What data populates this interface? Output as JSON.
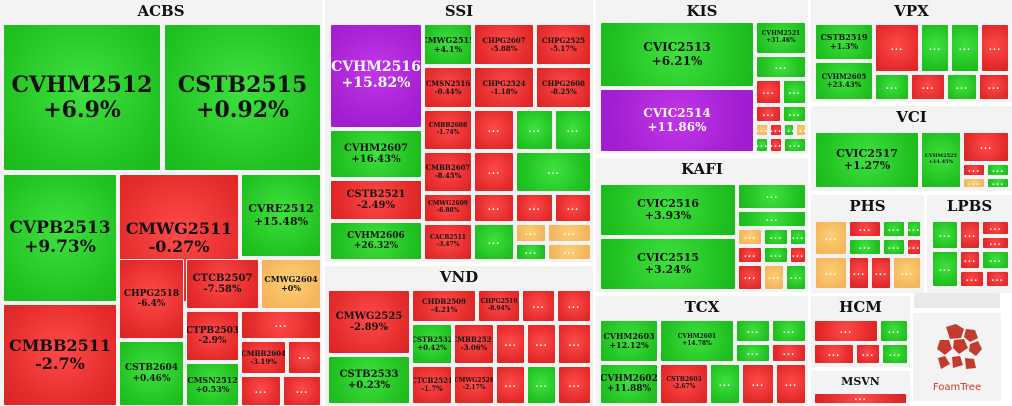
{
  "chart_data": {
    "type": "treemap",
    "groups": [
      {
        "name": "ACBS",
        "items": [
          {
            "label": "CVHM2512",
            "value": "+6.9%"
          },
          {
            "label": "CSTB2515",
            "value": "+0.92%"
          },
          {
            "label": "CVPB2513",
            "value": "+9.73%"
          },
          {
            "label": "CMWG2511",
            "value": "-0.27%"
          },
          {
            "label": "CVRE2512",
            "value": "+15.48%"
          },
          {
            "label": "CMBB2511",
            "value": "-2.7%"
          },
          {
            "label": "CHPG2518",
            "value": "-6.4%"
          },
          {
            "label": "CTCB2507",
            "value": "-7.58%"
          },
          {
            "label": "CMWG2604",
            "value": "+0%"
          },
          {
            "label": "CSTB2604",
            "value": "+0.46%"
          },
          {
            "label": "CTPB2503",
            "value": "-2.9%"
          },
          {
            "label": "CMBB2604",
            "value": "-3.19%"
          },
          {
            "label": "CMSN2512",
            "value": "+0.53%"
          }
        ]
      },
      {
        "name": "SSI",
        "items": [
          {
            "label": "CVHM2516",
            "value": "+15.82%"
          },
          {
            "label": "CMWG2515",
            "value": "+4.1%"
          },
          {
            "label": "CHPG2607",
            "value": "-5.88%"
          },
          {
            "label": "CHPG2525",
            "value": "-5.17%"
          },
          {
            "label": "CMSN2516",
            "value": "-0.44%"
          },
          {
            "label": "CHPG2524",
            "value": "-1.18%"
          },
          {
            "label": "CHPG2608",
            "value": "-8.25%"
          },
          {
            "label": "CMBB2608",
            "value": "-1.74%"
          },
          {
            "label": "CVHM2607",
            "value": "+16.43%"
          },
          {
            "label": "CMBB2607",
            "value": "-8.45%"
          },
          {
            "label": "CSTB2521",
            "value": "-2.49%"
          },
          {
            "label": "CMWG2609",
            "value": "-6.88%"
          },
          {
            "label": "CVHM2606",
            "value": "+26.32%"
          },
          {
            "label": "CACB2511",
            "value": "-3.47%"
          }
        ]
      },
      {
        "name": "VND",
        "items": [
          {
            "label": "CMWG2525",
            "value": "-2.89%"
          },
          {
            "label": "CHDB2509",
            "value": "-4.21%"
          },
          {
            "label": "CHPG2519",
            "value": "-8.94%"
          },
          {
            "label": "CSTB2532",
            "value": "+0.42%"
          },
          {
            "label": "CMBB2521",
            "value": "-3.06%"
          },
          {
            "label": "CSTB2533",
            "value": "+0.23%"
          },
          {
            "label": "CTCB2521",
            "value": "-1.7%"
          },
          {
            "label": "CMWG2526",
            "value": "-2.17%"
          }
        ]
      },
      {
        "name": "KIS",
        "items": [
          {
            "label": "CVIC2513",
            "value": "+6.21%"
          },
          {
            "label": "CVHM2521",
            "value": "+31.46%"
          },
          {
            "label": "CVIC2514",
            "value": "+11.86%"
          }
        ]
      },
      {
        "name": "KAFI",
        "items": [
          {
            "label": "CVIC2516",
            "value": "+3.93%"
          },
          {
            "label": "CVIC2515",
            "value": "+3.24%"
          }
        ]
      },
      {
        "name": "TCX",
        "items": [
          {
            "label": "CVHM2603",
            "value": "+12.12%"
          },
          {
            "label": "CVHM2601",
            "value": "+14.78%"
          },
          {
            "label": "CVHM2602",
            "value": "+11.88%"
          },
          {
            "label": "CSTB2603",
            "value": "-2.67%"
          }
        ]
      },
      {
        "name": "VPX",
        "items": [
          {
            "label": "CSTB2519",
            "value": "+1.3%"
          },
          {
            "label": "CVHM2605",
            "value": "+23.43%"
          }
        ]
      },
      {
        "name": "VCI",
        "items": [
          {
            "label": "CVIC2517",
            "value": "+1.27%"
          },
          {
            "label": "CVHM2525",
            "value": "+14.45%"
          }
        ]
      },
      {
        "name": "PHS",
        "items": []
      },
      {
        "name": "LPBS",
        "items": []
      },
      {
        "name": "HCM",
        "items": []
      },
      {
        "name": "MSVN",
        "items": []
      }
    ],
    "more_label": "...",
    "colors": {
      "up": "#22c322",
      "down": "#e52c2c",
      "ceiling": "#a11ed0",
      "flat": "#f4b55c"
    }
  },
  "brand": {
    "logo_label": "FoamTree"
  }
}
